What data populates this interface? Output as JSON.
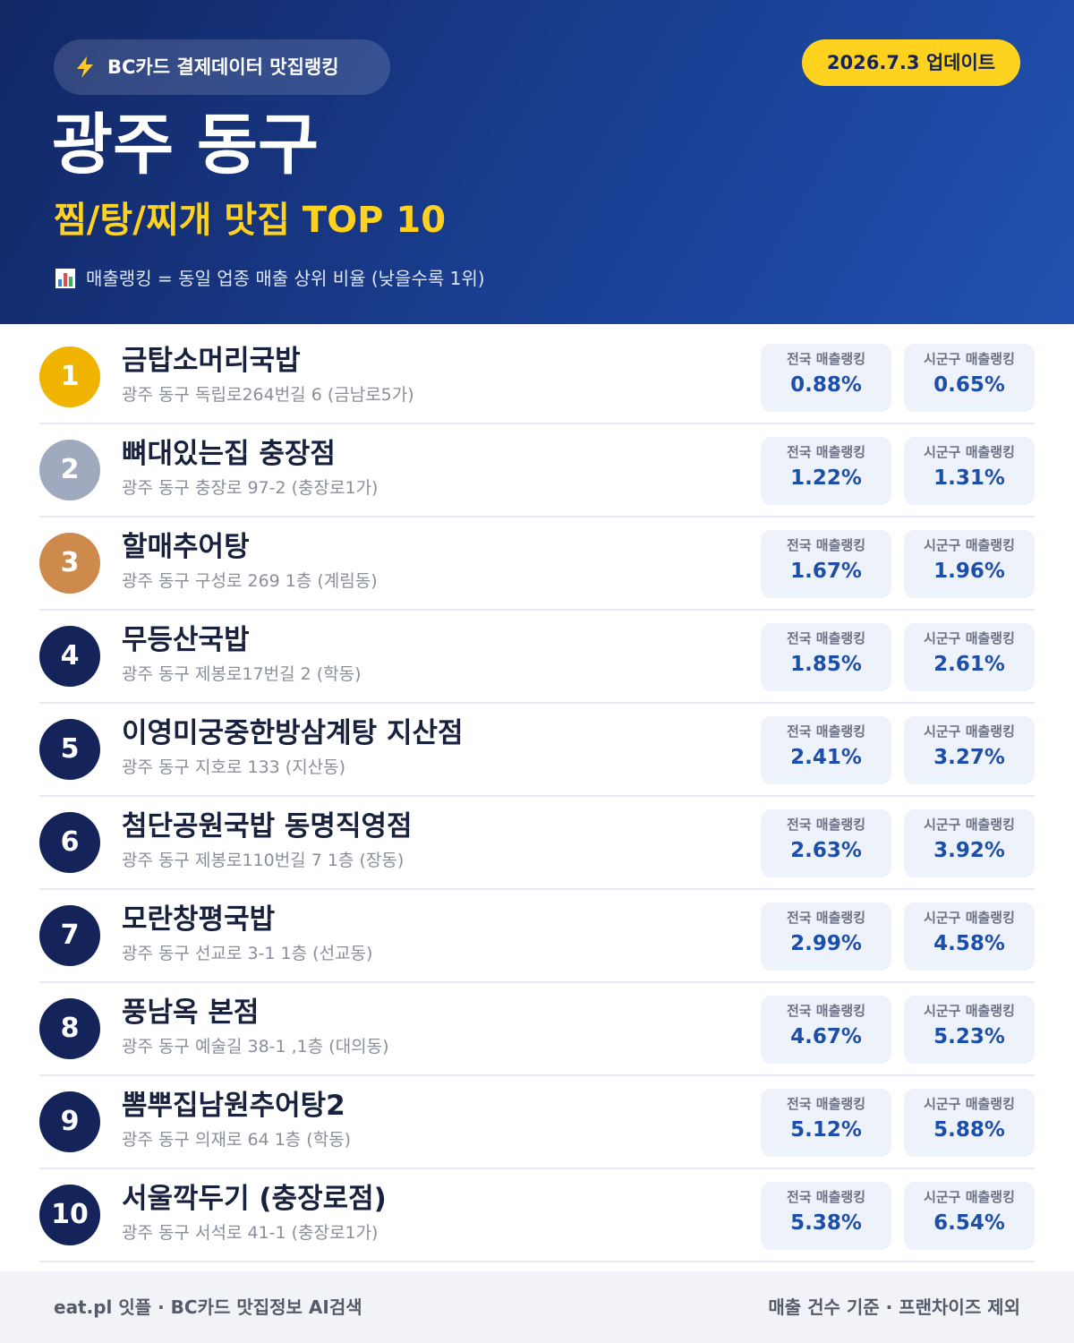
{
  "header": {
    "badge": "BC카드 결제데이터 맛집랭킹",
    "update": "2026.7.3 업데이트",
    "title": "광주 동구",
    "subtitle": "찜/탕/찌개 맛집 TOP 10",
    "note": "매출랭킹 = 동일 업종 매출 상위 비율 (낮을수록 1위)"
  },
  "labels": {
    "national": "전국 매출랭킹",
    "local": "시군구 매출랭킹"
  },
  "rows": [
    {
      "rank": 1,
      "name": "금탑소머리국밥",
      "address": "광주 동구 독립로264번길 6 (금남로5가)",
      "national": "0.88%",
      "local": "0.65%"
    },
    {
      "rank": 2,
      "name": "뼈대있는집 충장점",
      "address": "광주 동구 충장로 97-2 (충장로1가)",
      "national": "1.22%",
      "local": "1.31%"
    },
    {
      "rank": 3,
      "name": "할매추어탕",
      "address": "광주 동구 구성로 269 1층 (계림동)",
      "national": "1.67%",
      "local": "1.96%"
    },
    {
      "rank": 4,
      "name": "무등산국밥",
      "address": "광주 동구 제봉로17번길 2 (학동)",
      "national": "1.85%",
      "local": "2.61%"
    },
    {
      "rank": 5,
      "name": "이영미궁중한방삼계탕 지산점",
      "address": "광주 동구 지호로 133 (지산동)",
      "national": "2.41%",
      "local": "3.27%"
    },
    {
      "rank": 6,
      "name": "첨단공원국밥 동명직영점",
      "address": "광주 동구 제봉로110번길 7 1층 (장동)",
      "national": "2.63%",
      "local": "3.92%"
    },
    {
      "rank": 7,
      "name": "모란창평국밥",
      "address": "광주 동구 선교로 3-1 1층 (선교동)",
      "national": "2.99%",
      "local": "4.58%"
    },
    {
      "rank": 8,
      "name": "풍남옥 본점",
      "address": "광주 동구 예술길 38-1 ,1층 (대의동)",
      "national": "4.67%",
      "local": "5.23%"
    },
    {
      "rank": 9,
      "name": "뽐뿌집남원추어탕2",
      "address": "광주 동구 의재로 64 1층 (학동)",
      "national": "5.12%",
      "local": "5.88%"
    },
    {
      "rank": 10,
      "name": "서울깍두기 (충장로점)",
      "address": "광주 동구 서석로 41-1 (충장로1가)",
      "national": "5.38%",
      "local": "6.54%"
    }
  ],
  "footer": {
    "left": "eat.pl 잇플 · BC카드 맛집정보 AI검색",
    "right": "매출 건수 기준 · 프랜차이즈 제외"
  }
}
